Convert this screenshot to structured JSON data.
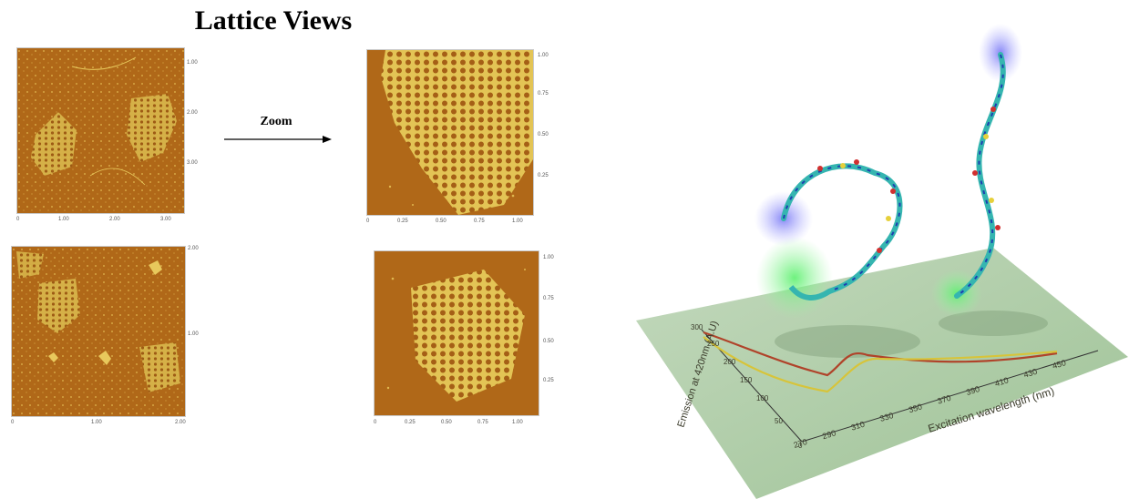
{
  "header": {
    "title": "Lattice Views"
  },
  "zoom": {
    "label": "Zoom"
  },
  "afm_panels": [
    {
      "id": "top-left",
      "y_ticks": [
        "1.00",
        "2.00",
        "3.00"
      ],
      "x_ticks": [
        "0",
        "1.00",
        "2.00",
        "3.00"
      ]
    },
    {
      "id": "top-right",
      "y_ticks": [
        "0.25",
        "0.50",
        "0.75",
        "1.00"
      ],
      "x_ticks": [
        "0",
        "0.25",
        "0.50",
        "0.75",
        "1.00"
      ]
    },
    {
      "id": "bottom-left",
      "y_ticks": [
        "1.00",
        "2.00"
      ],
      "x_ticks": [
        "0",
        "1.00",
        "2.00"
      ]
    },
    {
      "id": "bottom-right",
      "y_ticks": [
        "0.25",
        "0.50",
        "0.75",
        "1.00"
      ],
      "x_ticks": [
        "0",
        "0.25",
        "0.50",
        "0.75",
        "1.00"
      ]
    }
  ],
  "spectrum": {
    "ylabel": "Emission at 420nm (A.U)",
    "xlabel": "Excitation wavelength (nm)",
    "y_ticks": [
      "0",
      "50",
      "100",
      "150",
      "200",
      "250",
      "300"
    ],
    "x_ticks": [
      "270",
      "290",
      "310",
      "330",
      "350",
      "370",
      "390",
      "410",
      "430",
      "450"
    ]
  },
  "colors": {
    "afm_bg": "#b36a1c",
    "afm_feature": "#e8c95c",
    "plane": "#a9c9a2",
    "curve_red": "#b0432a",
    "curve_yellow": "#d7c43a",
    "mol_cyan": "#35b5b0",
    "glow_blue": "#8d8cf0",
    "glow_green": "#7ff08a"
  }
}
